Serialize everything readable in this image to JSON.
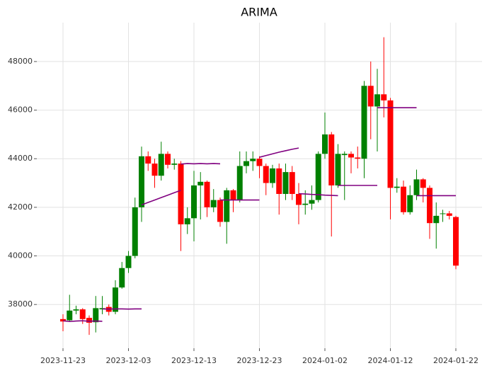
{
  "chart_data": {
    "type": "candlestick",
    "title": "ARIMA",
    "x": [
      "2023-11-23",
      "2023-11-24",
      "2023-11-25",
      "2023-11-26",
      "2023-11-27",
      "2023-11-28",
      "2023-11-29",
      "2023-11-30",
      "2023-12-01",
      "2023-12-02",
      "2023-12-03",
      "2023-12-04",
      "2023-12-05",
      "2023-12-06",
      "2023-12-07",
      "2023-12-08",
      "2023-12-09",
      "2023-12-10",
      "2023-12-11",
      "2023-12-12",
      "2023-12-13",
      "2023-12-14",
      "2023-12-15",
      "2023-12-16",
      "2023-12-17",
      "2023-12-18",
      "2023-12-19",
      "2023-12-20",
      "2023-12-21",
      "2023-12-22",
      "2023-12-23",
      "2023-12-24",
      "2023-12-25",
      "2023-12-26",
      "2023-12-27",
      "2023-12-28",
      "2023-12-29",
      "2023-12-30",
      "2023-12-31",
      "2024-01-01",
      "2024-01-02",
      "2024-01-03",
      "2024-01-04",
      "2024-01-05",
      "2024-01-06",
      "2024-01-07",
      "2024-01-08",
      "2024-01-09",
      "2024-01-10",
      "2024-01-11",
      "2024-01-12",
      "2024-01-13",
      "2024-01-14",
      "2024-01-15",
      "2024-01-16",
      "2024-01-17",
      "2024-01-18",
      "2024-01-19",
      "2024-01-20",
      "2024-01-21",
      "2024-01-22"
    ],
    "open": [
      37400,
      37350,
      37750,
      37800,
      37450,
      37270,
      37800,
      37900,
      37700,
      38700,
      39500,
      40000,
      42000,
      44100,
      43800,
      43300,
      44200,
      43750,
      43800,
      41300,
      41550,
      42900,
      43050,
      42000,
      42300,
      41400,
      42700,
      42300,
      43700,
      43900,
      44000,
      43700,
      43000,
      43600,
      42550,
      43450,
      42550,
      42100,
      42150,
      42300,
      44200,
      45000,
      42900,
      44150,
      44200,
      44050,
      44000,
      47000,
      46150,
      46650,
      46400,
      42800,
      42850,
      41800,
      42500,
      43150,
      42800,
      41350,
      41750,
      41750,
      41600
    ],
    "high": [
      37600,
      38400,
      37950,
      37850,
      37550,
      38350,
      38350,
      38000,
      39000,
      39750,
      40200,
      42400,
      44500,
      44300,
      44000,
      44700,
      44300,
      44000,
      43900,
      42000,
      43500,
      43450,
      43100,
      42750,
      42400,
      42800,
      42750,
      44300,
      44300,
      44300,
      44100,
      43800,
      43750,
      43800,
      43800,
      43700,
      43000,
      42700,
      42900,
      44300,
      45900,
      45100,
      44600,
      44300,
      44300,
      44500,
      47200,
      48000,
      47700,
      49000,
      46500,
      43200,
      43100,
      42900,
      43550,
      43200,
      42900,
      42200,
      41900,
      41850,
      41650
    ],
    "low": [
      36900,
      37300,
      37600,
      37200,
      36750,
      36850,
      37600,
      37550,
      37600,
      38650,
      39300,
      39900,
      41400,
      43500,
      42800,
      43100,
      43600,
      43550,
      40200,
      40900,
      40600,
      41500,
      41600,
      41800,
      41200,
      40500,
      41800,
      42200,
      43400,
      43500,
      43200,
      42500,
      42800,
      41700,
      42300,
      42300,
      41300,
      41700,
      41900,
      42200,
      44000,
      40800,
      42800,
      42300,
      43400,
      43600,
      43200,
      44800,
      44300,
      45700,
      41500,
      42600,
      41700,
      41700,
      42300,
      42200,
      40700,
      40300,
      41400,
      41500,
      39450
    ],
    "close": [
      37300,
      37750,
      37800,
      37400,
      37250,
      37850,
      37850,
      37700,
      38700,
      39500,
      40000,
      42000,
      44100,
      43800,
      43300,
      44200,
      43750,
      43800,
      41300,
      41550,
      42900,
      43050,
      42000,
      42300,
      41400,
      42700,
      42300,
      43700,
      43900,
      44000,
      43700,
      43000,
      43600,
      42550,
      43450,
      42550,
      42100,
      42150,
      42300,
      44200,
      45000,
      42900,
      44200,
      44200,
      44050,
      44000,
      47000,
      46150,
      46650,
      46400,
      42800,
      42850,
      41800,
      42500,
      43150,
      42800,
      41350,
      41650,
      41750,
      41650,
      39600
    ],
    "up_color": "#008000",
    "down_color": "#ff0000",
    "forecast_color": "#800080",
    "forecasts": [
      {
        "x": [
          "2023-11-23",
          "2023-11-24",
          "2023-11-25",
          "2023-11-26",
          "2023-11-27",
          "2023-11-28",
          "2023-11-29"
        ],
        "values": [
          37330,
          37300,
          37320,
          37330,
          37310,
          37320,
          37310
        ]
      },
      {
        "x": [
          "2023-11-29",
          "2023-11-30",
          "2023-12-01",
          "2023-12-02",
          "2023-12-03",
          "2023-12-04",
          "2023-12-05"
        ],
        "values": [
          37820,
          37810,
          37820,
          37820,
          37810,
          37820,
          37820
        ]
      },
      {
        "x": [
          "2023-12-05",
          "2023-12-06",
          "2023-12-07",
          "2023-12-08",
          "2023-12-09",
          "2023-12-10",
          "2023-12-11"
        ],
        "values": [
          42100,
          42200,
          42300,
          42400,
          42500,
          42600,
          42700
        ]
      },
      {
        "x": [
          "2023-12-11",
          "2023-12-12",
          "2023-12-13",
          "2023-12-14",
          "2023-12-15",
          "2023-12-16",
          "2023-12-17"
        ],
        "values": [
          43780,
          43800,
          43790,
          43800,
          43790,
          43800,
          43790
        ]
      },
      {
        "x": [
          "2023-12-17",
          "2023-12-18",
          "2023-12-19",
          "2023-12-20",
          "2023-12-21",
          "2023-12-22",
          "2023-12-23"
        ],
        "values": [
          42300,
          42300,
          42300,
          42300,
          42300,
          42300,
          42300
        ]
      },
      {
        "x": [
          "2023-12-23",
          "2023-12-24",
          "2023-12-25",
          "2023-12-26",
          "2023-12-27",
          "2023-12-28",
          "2023-12-29"
        ],
        "values": [
          44060,
          44130,
          44200,
          44270,
          44330,
          44390,
          44440
        ]
      },
      {
        "x": [
          "2023-12-29",
          "2023-12-30",
          "2023-12-31",
          "2024-01-01",
          "2024-01-02",
          "2024-01-03",
          "2024-01-04"
        ],
        "values": [
          42560,
          42550,
          42530,
          42520,
          42500,
          42490,
          42480
        ]
      },
      {
        "x": [
          "2024-01-04",
          "2024-01-05",
          "2024-01-06",
          "2024-01-07",
          "2024-01-08",
          "2024-01-09",
          "2024-01-10"
        ],
        "values": [
          42900,
          42900,
          42900,
          42900,
          42900,
          42900,
          42900
        ]
      },
      {
        "x": [
          "2024-01-10",
          "2024-01-11",
          "2024-01-12",
          "2024-01-13",
          "2024-01-14",
          "2024-01-15",
          "2024-01-16"
        ],
        "values": [
          46100,
          46100,
          46100,
          46100,
          46100,
          46100,
          46100
        ]
      },
      {
        "x": [
          "2024-01-16",
          "2024-01-17",
          "2024-01-18",
          "2024-01-19",
          "2024-01-20",
          "2024-01-21",
          "2024-01-22"
        ],
        "values": [
          42480,
          42480,
          42480,
          42480,
          42480,
          42480,
          42480
        ]
      }
    ],
    "xlim": [
      "2023-11-19",
      "2024-01-26"
    ],
    "xticks": [
      "2023-11-23",
      "2023-12-03",
      "2023-12-13",
      "2023-12-23",
      "2024-01-02",
      "2024-01-12",
      "2024-01-22"
    ],
    "ylim": [
      36200,
      49600
    ],
    "yticks": [
      38000,
      40000,
      42000,
      44000,
      46000,
      48000
    ],
    "grid": true
  }
}
